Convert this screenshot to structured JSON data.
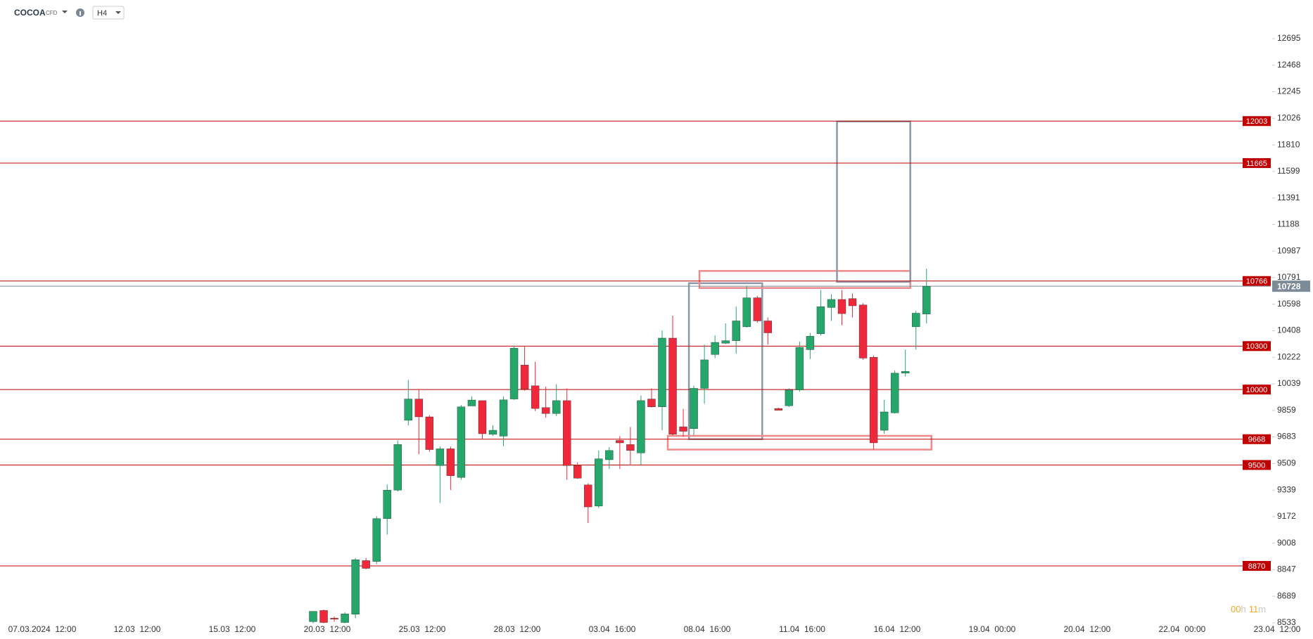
{
  "header": {
    "symbol": "COCOA",
    "kind": "CFD",
    "interval": "H4"
  },
  "countdown": [
    "00",
    "h",
    "11",
    "m"
  ],
  "chart_data": {
    "type": "candlestick",
    "log_scale": true,
    "ylim": [
      8533,
      12695
    ],
    "yticks": [
      12695,
      12468,
      12245,
      12026,
      11810,
      11599,
      11391,
      11188,
      10987,
      10791,
      10598,
      10408,
      10222,
      10039,
      9859,
      9683,
      9509,
      9339,
      9172,
      9008,
      8847,
      8689,
      8533
    ],
    "x_labels": [
      "07.03.2024  12:00",
      "12.03  12:00",
      "15.03  12:00",
      "20.03  12:00",
      "25.03  12:00",
      "28.03  12:00",
      "03.04  16:00",
      "08.04  16:00",
      "11.04  16:00",
      "16.04  12:00",
      "19.04  00:00",
      "20.04  12:00",
      "22.04  00:00",
      "23.04  12:00"
    ],
    "up_color": "#26a66b",
    "down_color": "#f0283c",
    "open": [
      8540,
      8605,
      8560,
      8535,
      8583,
      8902,
      8897,
      9160,
      9339,
      9793,
      9936,
      9816,
      9496,
      9605,
      9420,
      9889,
      9925,
      9700,
      9688,
      9936,
      10168,
      10026,
      9878,
      9838,
      9925,
      9496,
      9372,
      9238,
      9534,
      9660,
      9633,
      9578,
      9936,
      9883,
      10356,
      9750,
      9738,
      10008,
      10241,
      10320,
      10338,
      10436,
      10644,
      10478,
      9872,
      9890,
      9997,
      10275,
      10387,
      10574,
      10632,
      10638,
      10592,
      10222,
      9727,
      9843,
      10112,
      10436,
      10527
    ],
    "high": [
      8600,
      8610,
      8570,
      8595,
      8918,
      8918,
      9175,
      9375,
      9660,
      10066,
      10000,
      9827,
      9620,
      9620,
      9895,
      9954,
      9925,
      9760,
      9954,
      10303,
      10297,
      10191,
      10020,
      10037,
      10008,
      9517,
      9383,
      9594,
      9616,
      9688,
      9749,
      9960,
      10008,
      10410,
      10515,
      9870,
      10026,
      10310,
      10375,
      10460,
      10580,
      10730,
      10657,
      10503,
      9878,
      10008,
      10332,
      10393,
      10700,
      10669,
      10700,
      10675,
      10605,
      10234,
      9930,
      10131,
      10275,
      10550,
      10857
    ],
    "low": [
      8530,
      8530,
      8540,
      8530,
      8560,
      8850,
      8880,
      9060,
      9330,
      9759,
      9570,
      9585,
      9258,
      9339,
      9405,
      9889,
      9665,
      9690,
      9622,
      9930,
      9991,
      9855,
      9810,
      9821,
      9405,
      9410,
      9132,
      9227,
      9474,
      9474,
      9500,
      9500,
      9878,
      9727,
      9693,
      9683,
      9693,
      9905,
      10216,
      10314,
      10247,
      10430,
      10466,
      10310,
      9860,
      9883,
      9985,
      10210,
      10375,
      10478,
      10448,
      10503,
      10204,
      9600,
      9704,
      9838,
      10089,
      10275,
      10460
    ],
    "close": [
      8600,
      8535,
      8558,
      8585,
      8907,
      8855,
      9160,
      9339,
      9633,
      9936,
      9816,
      9600,
      9605,
      9431,
      9883,
      9929,
      9704,
      9727,
      9930,
      10285,
      10003,
      9872,
      9838,
      9925,
      9496,
      9415,
      9233,
      9540,
      9594,
      9644,
      9594,
      9925,
      9883,
      10356,
      9700,
      9720,
      10008,
      10204,
      10326,
      10338,
      10478,
      10644,
      10478,
      10393,
      9860,
      9997,
      10291,
      10369,
      10580,
      10632,
      10530,
      10586,
      10216,
      9644,
      9849,
      10112,
      10124,
      10533,
      10728
    ],
    "levels": [
      {
        "value": 12003,
        "color": "#c00000"
      },
      {
        "value": 11665,
        "color": "#c00000"
      },
      {
        "value": 10766,
        "color": "#c00000"
      },
      {
        "value": 10300,
        "color": "#c00000"
      },
      {
        "value": 10000,
        "color": "#c00000"
      },
      {
        "value": 9668,
        "color": "#c00000"
      },
      {
        "value": 9500,
        "color": "#c00000"
      },
      {
        "value": 8870,
        "color": "#c00000"
      }
    ],
    "current": {
      "value": 10728,
      "color": "#7d8a97"
    },
    "zones": [
      {
        "low": 9668,
        "high": 10750,
        "color": "#8a9aab"
      },
      {
        "low": 10715,
        "high": 10840,
        "color": "#f08a8a"
      },
      {
        "low": 9600,
        "high": 9690,
        "color": "#f08a8a"
      },
      {
        "low": 10760,
        "high": 12000,
        "color": "#8a9aab"
      }
    ]
  }
}
